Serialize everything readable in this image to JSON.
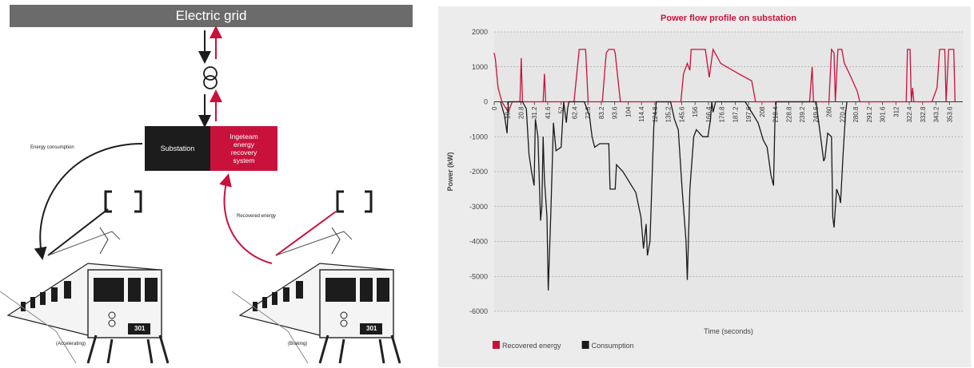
{
  "diagram": {
    "grid_label": "Electric grid",
    "substation_label": "Substation",
    "ers_label": "Ingeteam energy recovery system",
    "energy_consumption_label": "Energy consumption",
    "recovered_energy_label": "Recovered energy",
    "left_train_caption": "(Accelerating)",
    "right_train_caption": "(Braking)",
    "train_number": "301",
    "colors": {
      "grid": "#6b6b6b",
      "substation": "#1c1c1c",
      "recovery": "#c8123c"
    }
  },
  "chart_data": {
    "type": "line",
    "title": "Power flow profile on substation",
    "xlabel": "Time (seconds)",
    "ylabel": "Power (kW)",
    "ylim": [
      -6000,
      2000
    ],
    "yticks": [
      2000,
      1000,
      0,
      -1000,
      -2000,
      -3000,
      -4000,
      -5000,
      -6000
    ],
    "xtick_labels": [
      "0",
      "10.4",
      "20.8",
      "31.2",
      "41.6",
      "52",
      "62.4",
      "72.8",
      "83.2",
      "93.6",
      "104",
      "114.4",
      "124.8",
      "135.2",
      "145.6",
      "156",
      "166.4",
      "176.8",
      "187.2",
      "197.6",
      "208",
      "218.4",
      "228.8",
      "239.2",
      "249.6",
      "260",
      "270.4",
      "280.8",
      "291.2",
      "301.6",
      "312",
      "322.4",
      "332.8",
      "343.2",
      "353.6"
    ],
    "xlim": [
      0,
      364
    ],
    "grid": true,
    "legend_position": "bottom-left",
    "series": [
      {
        "name": "Recovered energy",
        "color": "#c8123c",
        "points": [
          [
            0,
            1400
          ],
          [
            1,
            1200
          ],
          [
            3,
            400
          ],
          [
            6,
            0
          ],
          [
            11,
            -300
          ],
          [
            14,
            0
          ],
          [
            20,
            0
          ],
          [
            21,
            1250
          ],
          [
            22,
            0
          ],
          [
            38,
            0
          ],
          [
            39,
            800
          ],
          [
            40,
            0
          ],
          [
            62,
            0
          ],
          [
            66,
            1500
          ],
          [
            67,
            1500
          ],
          [
            71,
            1500
          ],
          [
            73,
            0
          ],
          [
            84,
            0
          ],
          [
            87,
            1400
          ],
          [
            89,
            1500
          ],
          [
            93,
            1500
          ],
          [
            94,
            1400
          ],
          [
            96,
            700
          ],
          [
            98,
            0
          ],
          [
            145,
            0
          ],
          [
            147,
            800
          ],
          [
            150,
            1100
          ],
          [
            152,
            900
          ],
          [
            153,
            1500
          ],
          [
            158,
            1500
          ],
          [
            164,
            1500
          ],
          [
            167,
            700
          ],
          [
            170,
            1500
          ],
          [
            176,
            1100
          ],
          [
            190,
            800
          ],
          [
            200,
            600
          ],
          [
            203,
            0
          ],
          [
            245,
            0
          ],
          [
            247,
            1000
          ],
          [
            248,
            0
          ],
          [
            260,
            0
          ],
          [
            262,
            1500
          ],
          [
            264,
            1400
          ],
          [
            265,
            0
          ],
          [
            267,
            1500
          ],
          [
            270,
            1500
          ],
          [
            272,
            1100
          ],
          [
            276,
            800
          ],
          [
            282,
            300
          ],
          [
            284,
            0
          ],
          [
            300,
            0
          ],
          [
            310,
            0
          ],
          [
            320,
            0
          ],
          [
            321,
            1500
          ],
          [
            323,
            1500
          ],
          [
            324,
            0
          ],
          [
            325,
            400
          ],
          [
            326,
            0
          ],
          [
            340,
            0
          ],
          [
            344,
            400
          ],
          [
            346,
            1500
          ],
          [
            350,
            1500
          ],
          [
            351,
            0
          ],
          [
            353,
            1500
          ],
          [
            357,
            1500
          ],
          [
            358,
            0
          ]
        ]
      },
      {
        "name": "Consumption",
        "color": "#1a1a1a",
        "points": [
          [
            5,
            0
          ],
          [
            8,
            -400
          ],
          [
            10,
            -900
          ],
          [
            11,
            0
          ],
          [
            22,
            0
          ],
          [
            25,
            -200
          ],
          [
            27,
            -1500
          ],
          [
            29,
            -2000
          ],
          [
            31,
            -2400
          ],
          [
            32,
            -500
          ],
          [
            34,
            -1000
          ],
          [
            36,
            -3400
          ],
          [
            37,
            -3000
          ],
          [
            38,
            -1000
          ],
          [
            39,
            -2200
          ],
          [
            41,
            -3300
          ],
          [
            42,
            -5400
          ],
          [
            44,
            -3200
          ],
          [
            46,
            -600
          ],
          [
            48,
            -1400
          ],
          [
            52,
            -1300
          ],
          [
            54,
            0
          ],
          [
            56,
            -600
          ],
          [
            57,
            -200
          ],
          [
            58,
            0
          ],
          [
            70,
            0
          ],
          [
            74,
            -400
          ],
          [
            76,
            -1000
          ],
          [
            78,
            -1300
          ],
          [
            82,
            -1200
          ],
          [
            89,
            -1200
          ],
          [
            90,
            -2500
          ],
          [
            94,
            -2500
          ],
          [
            95,
            -1800
          ],
          [
            100,
            -2000
          ],
          [
            110,
            -2600
          ],
          [
            114,
            -3300
          ],
          [
            116,
            -4200
          ],
          [
            118,
            -3500
          ],
          [
            119,
            -4400
          ],
          [
            121,
            -4000
          ],
          [
            124,
            -700
          ],
          [
            126,
            0
          ],
          [
            137,
            0
          ],
          [
            140,
            -500
          ],
          [
            143,
            -800
          ],
          [
            146,
            -2500
          ],
          [
            149,
            -4000
          ],
          [
            150,
            -5100
          ],
          [
            152,
            -2500
          ],
          [
            155,
            -1000
          ],
          [
            157,
            -800
          ],
          [
            162,
            -1000
          ],
          [
            166,
            -1000
          ],
          [
            168,
            -500
          ],
          [
            169,
            0
          ],
          [
            170,
            -300
          ],
          [
            172,
            0
          ],
          [
            178,
            0
          ],
          [
            195,
            0
          ],
          [
            200,
            -300
          ],
          [
            205,
            -600
          ],
          [
            209,
            -1100
          ],
          [
            212,
            -1300
          ],
          [
            215,
            -2100
          ],
          [
            217,
            -2400
          ],
          [
            218,
            -600
          ],
          [
            219,
            0
          ],
          [
            250,
            0
          ],
          [
            256,
            -1700
          ],
          [
            257,
            -1600
          ],
          [
            259,
            -900
          ],
          [
            262,
            -1000
          ],
          [
            263,
            -3300
          ],
          [
            264,
            -3600
          ],
          [
            266,
            -2500
          ],
          [
            268,
            -2700
          ],
          [
            269,
            -2900
          ],
          [
            271,
            -1500
          ],
          [
            273,
            -300
          ],
          [
            274,
            0
          ]
        ]
      }
    ]
  }
}
